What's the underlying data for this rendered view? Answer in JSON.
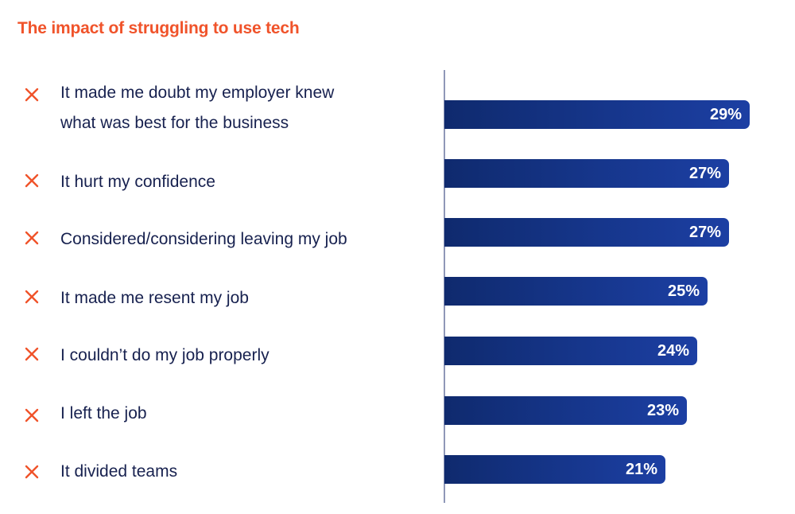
{
  "colors": {
    "title": "#f0532a",
    "icon": "#f0532a",
    "label": "#17214f",
    "bar": "#16368c",
    "bar_text": "#ffffff",
    "axis": "#8f98b8"
  },
  "icons": {
    "item_marker": "close-x-icon"
  },
  "chart_data": {
    "type": "bar",
    "orientation": "horizontal",
    "title": "The impact of struggling to use tech",
    "categories": [
      [
        "It made me doubt my employer knew",
        "what was best for the business"
      ],
      [
        "It hurt my confidence"
      ],
      [
        "Considered/considering leaving my job"
      ],
      [
        "It made me resent my job"
      ],
      [
        "I couldn’t do my job properly"
      ],
      [
        "I left the job"
      ],
      [
        "It divided teams"
      ]
    ],
    "values": [
      29,
      27,
      27,
      25,
      24,
      23,
      21
    ],
    "value_labels": [
      "29%",
      "27%",
      "27%",
      "25%",
      "24%",
      "23%",
      "21%"
    ],
    "value_unit": "%",
    "xlim": [
      0,
      33
    ],
    "grid": false,
    "legend": "none"
  }
}
